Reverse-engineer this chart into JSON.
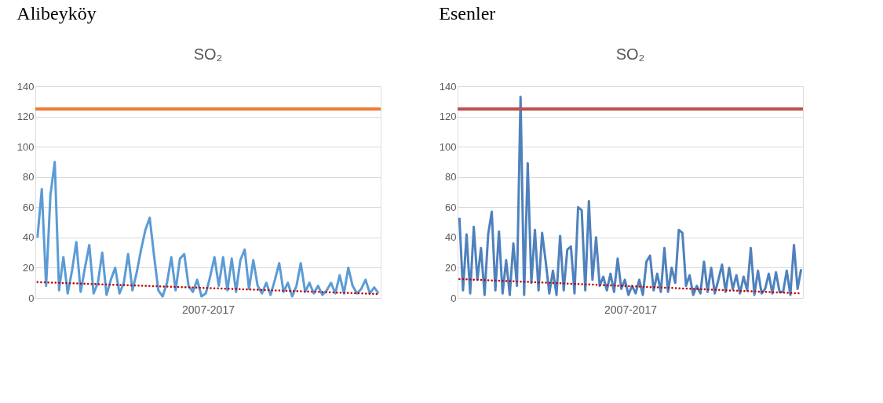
{
  "chart_data": [
    {
      "type": "line",
      "title": "SO₂",
      "xlabel": "2007-2017",
      "annotations": [
        "Alibeyköy"
      ],
      "categories": [
        null,
        null,
        null,
        null,
        null,
        null,
        null,
        null,
        null,
        null,
        null,
        null,
        null,
        null,
        null,
        null,
        null,
        null,
        null,
        null,
        null,
        null,
        null,
        null,
        null,
        null,
        null,
        null,
        null,
        null,
        null,
        null,
        null,
        null,
        null,
        null,
        null,
        null,
        null,
        null,
        null,
        null,
        null,
        null,
        null,
        null,
        null,
        null,
        null,
        null,
        null,
        null,
        null,
        null,
        null,
        null,
        null,
        null,
        null,
        null,
        null,
        null,
        null,
        null,
        null,
        null,
        null,
        null,
        null,
        null,
        null,
        null,
        null,
        null,
        null,
        null,
        null,
        null,
        null,
        null
      ],
      "series": [
        {
          "color": "#5b9bd5",
          "values": [
            40,
            72,
            8,
            68,
            90,
            5,
            27,
            3,
            18,
            37,
            4,
            20,
            35,
            3,
            10,
            30,
            2,
            12,
            20,
            3,
            10,
            29,
            5,
            17,
            32,
            45,
            53,
            28,
            5,
            1,
            10,
            27,
            5,
            26,
            29,
            8,
            4,
            12,
            1,
            3,
            14,
            27,
            8,
            27,
            5,
            26,
            4,
            25,
            32,
            6,
            25,
            8,
            3,
            10,
            2,
            12,
            23,
            4,
            10,
            1,
            8,
            23,
            4,
            10,
            3,
            8,
            2,
            5,
            10,
            3,
            15,
            3,
            20,
            8,
            3,
            6,
            12,
            3,
            7,
            3
          ]
        },
        {
          "color": "#c00000",
          "line_style": "dotted",
          "values": [
            10.5,
            10.4,
            10.3,
            10.2,
            10.1,
            10.0,
            9.9,
            9.8,
            9.7,
            9.6,
            9.5,
            9.4,
            9.3,
            9.2,
            9.1,
            9.0,
            8.9,
            8.8,
            8.7,
            8.6,
            8.5,
            8.4,
            8.3,
            8.2,
            8.1,
            8.0,
            7.9,
            7.8,
            7.7,
            7.6,
            7.5,
            7.4,
            7.3,
            7.2,
            7.1,
            7.0,
            6.9,
            6.8,
            6.7,
            6.6,
            6.5,
            6.4,
            6.3,
            6.2,
            6.1,
            6.0,
            5.9,
            5.8,
            5.7,
            5.6,
            5.5,
            5.4,
            5.3,
            5.2,
            5.1,
            5.0,
            4.9,
            4.8,
            4.7,
            4.6,
            4.5,
            4.4,
            4.3,
            4.2,
            4.1,
            4.0,
            3.9,
            3.8,
            3.7,
            3.6,
            3.5,
            3.4,
            3.3,
            3.2,
            3.1,
            3.0,
            2.9,
            2.8,
            2.7,
            2.6
          ]
        }
      ],
      "ref_lines": [
        {
          "axis": "y",
          "value": 125,
          "color": "#ed7d31"
        }
      ],
      "ylim": [
        0,
        140
      ],
      "yticks": [
        0,
        20,
        40,
        60,
        80,
        100,
        120,
        140
      ],
      "grid": "y",
      "tick_labels": "y"
    },
    {
      "type": "line",
      "title": "SO₂",
      "xlabel": "2007-2017",
      "annotations": [
        "Esenler"
      ],
      "categories": [
        null,
        null,
        null,
        null,
        null,
        null,
        null,
        null,
        null,
        null,
        null,
        null,
        null,
        null,
        null,
        null,
        null,
        null,
        null,
        null,
        null,
        null,
        null,
        null,
        null,
        null,
        null,
        null,
        null,
        null,
        null,
        null,
        null,
        null,
        null,
        null,
        null,
        null,
        null,
        null,
        null,
        null,
        null,
        null,
        null,
        null,
        null,
        null,
        null,
        null,
        null,
        null,
        null,
        null,
        null,
        null,
        null,
        null,
        null,
        null,
        null,
        null,
        null,
        null,
        null,
        null,
        null,
        null,
        null,
        null,
        null,
        null,
        null,
        null,
        null,
        null,
        null,
        null,
        null,
        null,
        null,
        null,
        null,
        null,
        null,
        null,
        null,
        null,
        null,
        null,
        null,
        null,
        null,
        null,
        null,
        null
      ],
      "series": [
        {
          "color": "#4f81bd",
          "values": [
            53,
            5,
            42,
            3,
            47,
            12,
            33,
            2,
            42,
            57,
            5,
            44,
            3,
            25,
            2,
            36,
            8,
            133,
            2,
            89,
            10,
            45,
            5,
            43,
            24,
            3,
            18,
            2,
            41,
            5,
            32,
            34,
            3,
            60,
            58,
            5,
            64,
            12,
            40,
            8,
            14,
            5,
            16,
            4,
            26,
            6,
            12,
            2,
            8,
            3,
            12,
            2,
            24,
            28,
            5,
            16,
            4,
            33,
            4,
            20,
            10,
            45,
            43,
            8,
            15,
            2,
            8,
            3,
            24,
            4,
            20,
            3,
            12,
            22,
            4,
            20,
            6,
            15,
            3,
            14,
            5,
            33,
            2,
            18,
            3,
            6,
            16,
            3,
            17,
            4,
            4,
            18,
            2,
            35,
            6,
            19
          ]
        },
        {
          "color": "#c00000",
          "line_style": "dotted",
          "values": [
            12.5,
            12.4,
            12.3,
            12.2,
            12.1,
            12.0,
            11.9,
            11.8,
            11.7,
            11.6,
            11.5,
            11.4,
            11.3,
            11.2,
            11.1,
            11.0,
            10.9,
            10.8,
            10.7,
            10.6,
            10.5,
            10.4,
            10.3,
            10.2,
            10.1,
            10.0,
            9.9,
            9.8,
            9.7,
            9.6,
            9.5,
            9.4,
            9.3,
            9.2,
            9.1,
            9.0,
            8.9,
            8.8,
            8.7,
            8.6,
            8.5,
            8.4,
            8.3,
            8.2,
            8.1,
            8.0,
            7.9,
            7.8,
            7.7,
            7.6,
            7.5,
            7.4,
            7.3,
            7.2,
            7.1,
            7.0,
            6.9,
            6.8,
            6.7,
            6.6,
            6.5,
            6.4,
            6.3,
            6.2,
            6.1,
            6.0,
            5.9,
            5.8,
            5.7,
            5.6,
            5.5,
            5.4,
            5.3,
            5.2,
            5.1,
            5.0,
            4.9,
            4.8,
            4.7,
            4.6,
            4.5,
            4.4,
            4.3,
            4.2,
            4.1,
            4.0,
            3.9,
            3.8,
            3.7,
            3.6,
            3.5,
            3.4,
            3.3,
            3.2,
            3.1,
            3.0
          ]
        }
      ],
      "ref_lines": [
        {
          "axis": "y",
          "value": 125,
          "color": "#c0504d"
        }
      ],
      "ylim": [
        0,
        140
      ],
      "yticks": [
        0,
        20,
        40,
        60,
        80,
        100,
        120,
        140
      ],
      "grid": "y",
      "tick_labels": "y"
    }
  ]
}
